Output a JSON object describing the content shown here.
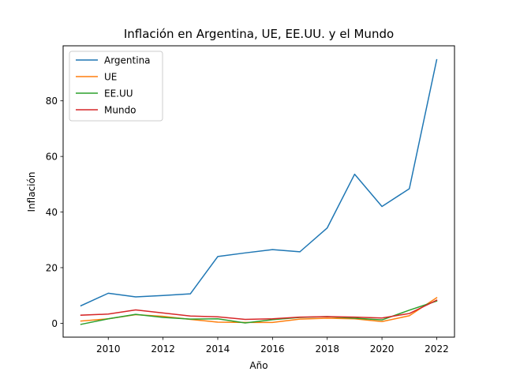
{
  "chart_data": {
    "type": "line",
    "title": "Inflación en Argentina, UE, EE.UU. y el Mundo",
    "xlabel": "Año",
    "ylabel": "Inflación",
    "xlim": [
      2008.35,
      2022.65
    ],
    "ylim": [
      -5.0,
      99.8
    ],
    "xticks": [
      2010,
      2012,
      2014,
      2016,
      2018,
      2020,
      2022
    ],
    "yticks": [
      0,
      20,
      40,
      60,
      80
    ],
    "grid": false,
    "legend_position": "upper-left",
    "x": [
      2009,
      2010,
      2011,
      2012,
      2013,
      2014,
      2015,
      2016,
      2017,
      2018,
      2019,
      2020,
      2021,
      2022
    ],
    "series": [
      {
        "name": "Argentina",
        "color": "#1f77b4",
        "values": [
          6.3,
          10.8,
          9.5,
          10.0,
          10.6,
          24.0,
          25.3,
          26.5,
          25.7,
          34.3,
          53.6,
          42.0,
          48.4,
          94.8
        ]
      },
      {
        "name": "UE",
        "color": "#ff7f0e",
        "values": [
          0.8,
          1.6,
          3.1,
          2.5,
          1.4,
          0.4,
          0.3,
          0.3,
          1.5,
          1.8,
          1.6,
          0.6,
          2.7,
          9.2
        ]
      },
      {
        "name": "EE.UU",
        "color": "#2ca02c",
        "values": [
          -0.4,
          1.6,
          3.2,
          2.1,
          1.5,
          1.6,
          0.1,
          1.3,
          2.1,
          2.4,
          1.8,
          1.2,
          4.7,
          8.0
        ]
      },
      {
        "name": "Mundo",
        "color": "#d62728",
        "values": [
          2.9,
          3.3,
          4.8,
          3.7,
          2.6,
          2.3,
          1.4,
          1.6,
          2.2,
          2.4,
          2.2,
          1.9,
          3.5,
          8.3
        ]
      }
    ]
  }
}
